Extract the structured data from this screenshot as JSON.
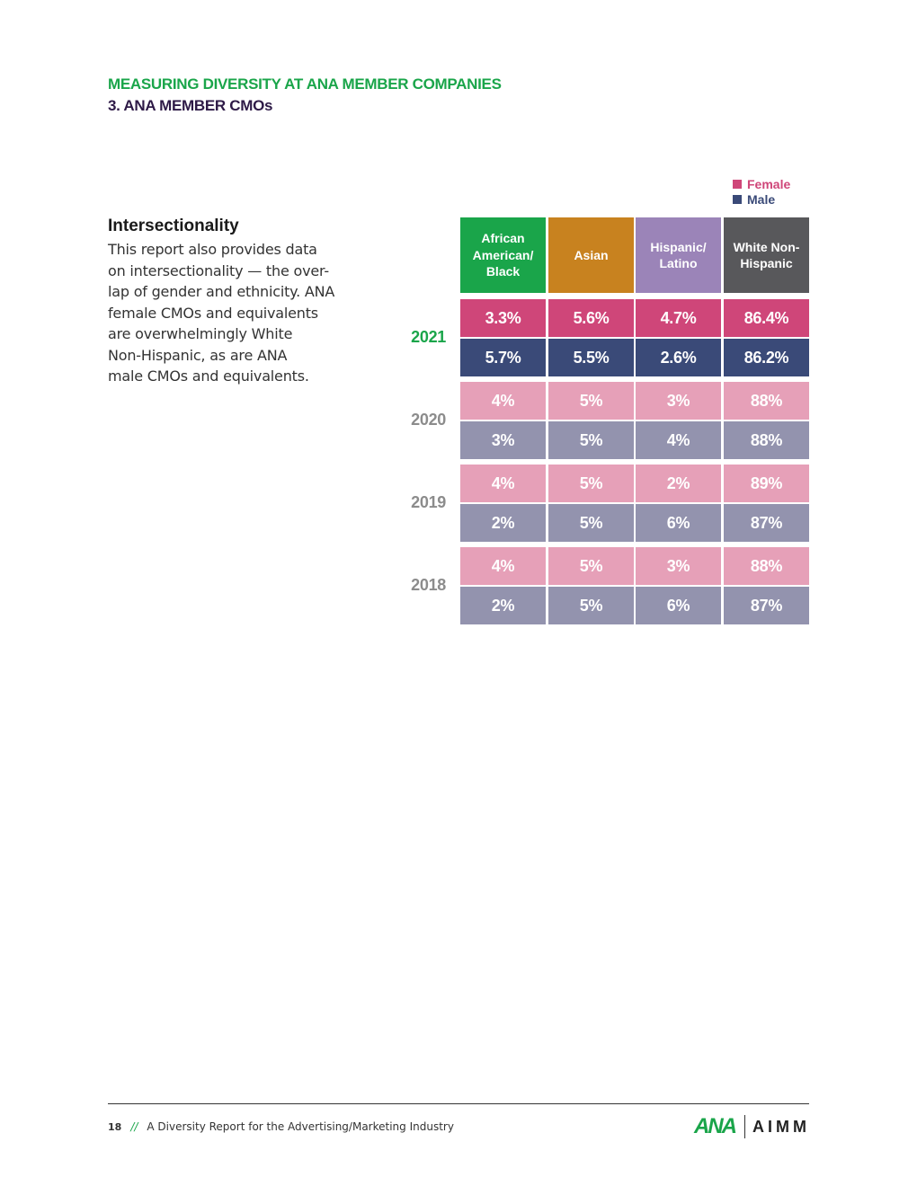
{
  "header": {
    "section": "MEASURING DIVERSITY AT ANA MEMBER COMPANIES",
    "subsection": "3. ANA MEMBER CMOs"
  },
  "legend": [
    {
      "label": "Female",
      "color": "#cf4679"
    },
    {
      "label": "Male",
      "color": "#3a4a78"
    }
  ],
  "sidebar": {
    "title": "Intersectionality",
    "lines": [
      "This report also provides data",
      "on intersectionality — the over-",
      "lap of gender and ethnicity. ANA",
      "female CMOs and equivalents",
      "are overwhelmingly White",
      "Non-Hispanic, as are ANA",
      "male CMOs and equivalents."
    ]
  },
  "table": {
    "columns": [
      {
        "label": "African American/ Black",
        "color": "#1aa54a"
      },
      {
        "label": "Asian",
        "color": "#c8821f"
      },
      {
        "label": "Hispanic/ Latino",
        "color": "#9b84b8"
      },
      {
        "label": "White Non- Hispanic",
        "color": "#58585b"
      }
    ],
    "rows": [
      {
        "year": "2021",
        "year_color": "#1aa54a",
        "female": [
          "3.3%",
          "5.6%",
          "4.7%",
          "86.4%"
        ],
        "male": [
          "5.7%",
          "5.5%",
          "2.6%",
          "86.2%"
        ],
        "female_color": "#cf4679",
        "male_color": "#3a4a78"
      },
      {
        "year": "2020",
        "year_color": "#8c8c8c",
        "female": [
          "4%",
          "5%",
          "3%",
          "88%"
        ],
        "male": [
          "3%",
          "5%",
          "4%",
          "88%"
        ],
        "female_color": "#e6a0b8",
        "male_color": "#9393ae"
      },
      {
        "year": "2019",
        "year_color": "#8c8c8c",
        "female": [
          "4%",
          "5%",
          "2%",
          "89%"
        ],
        "male": [
          "2%",
          "5%",
          "6%",
          "87%"
        ],
        "female_color": "#e6a0b8",
        "male_color": "#9393ae"
      },
      {
        "year": "2018",
        "year_color": "#8c8c8c",
        "female": [
          "4%",
          "5%",
          "3%",
          "88%"
        ],
        "male": [
          "2%",
          "5%",
          "6%",
          "87%"
        ],
        "female_color": "#e6a0b8",
        "male_color": "#9393ae"
      }
    ]
  },
  "footer": {
    "page_number": "18",
    "separator": "//",
    "title": "A Diversity Report for the Advertising/Marketing Industry",
    "logo_ana": "ANA",
    "logo_aimm": "AIMM"
  }
}
